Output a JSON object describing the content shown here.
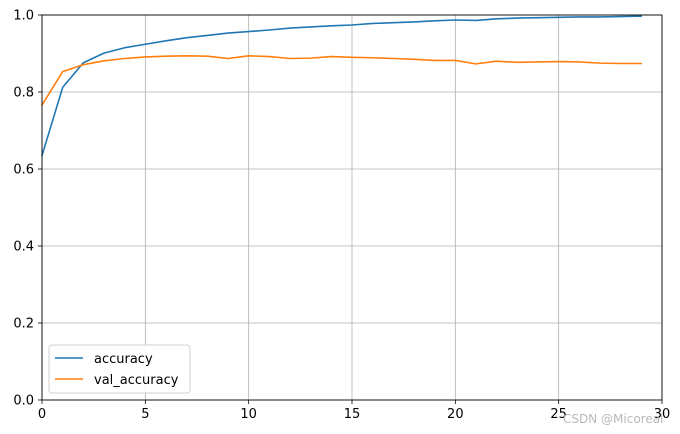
{
  "chart_data": {
    "type": "line",
    "x": [
      0,
      1,
      2,
      3,
      4,
      5,
      6,
      7,
      8,
      9,
      10,
      11,
      12,
      13,
      14,
      15,
      16,
      17,
      18,
      19,
      20,
      21,
      22,
      23,
      24,
      25,
      26,
      27,
      28,
      29
    ],
    "series": [
      {
        "name": "accuracy",
        "color": "#1f77b4",
        "values": [
          0.635,
          0.812,
          0.876,
          0.901,
          0.915,
          0.924,
          0.933,
          0.941,
          0.947,
          0.953,
          0.957,
          0.961,
          0.966,
          0.969,
          0.972,
          0.974,
          0.978,
          0.98,
          0.982,
          0.985,
          0.987,
          0.986,
          0.99,
          0.992,
          0.993,
          0.994,
          0.995,
          0.995,
          0.996,
          0.997
        ]
      },
      {
        "name": "val_accuracy",
        "color": "#ff7f0e",
        "values": [
          0.766,
          0.853,
          0.871,
          0.881,
          0.887,
          0.891,
          0.893,
          0.894,
          0.893,
          0.887,
          0.894,
          0.892,
          0.887,
          0.888,
          0.892,
          0.89,
          0.889,
          0.887,
          0.885,
          0.882,
          0.882,
          0.873,
          0.88,
          0.877,
          0.878,
          0.879,
          0.878,
          0.875,
          0.874,
          0.874
        ]
      }
    ],
    "xlim": [
      0,
      30
    ],
    "ylim": [
      0.0,
      1.0
    ],
    "xticks": [
      0,
      5,
      10,
      15,
      20,
      25,
      30
    ],
    "xtick_labels": [
      "0",
      "5",
      "10",
      "15",
      "20",
      "25",
      "30"
    ],
    "yticks": [
      0.0,
      0.2,
      0.4,
      0.6,
      0.8,
      1.0
    ],
    "ytick_labels": [
      "0.0",
      "0.2",
      "0.4",
      "0.6",
      "0.8",
      "1.0"
    ],
    "grid": true,
    "legend_position": "lower-left",
    "title": "",
    "xlabel": "",
    "ylabel": ""
  },
  "watermark": "CSDN @Micoreal"
}
